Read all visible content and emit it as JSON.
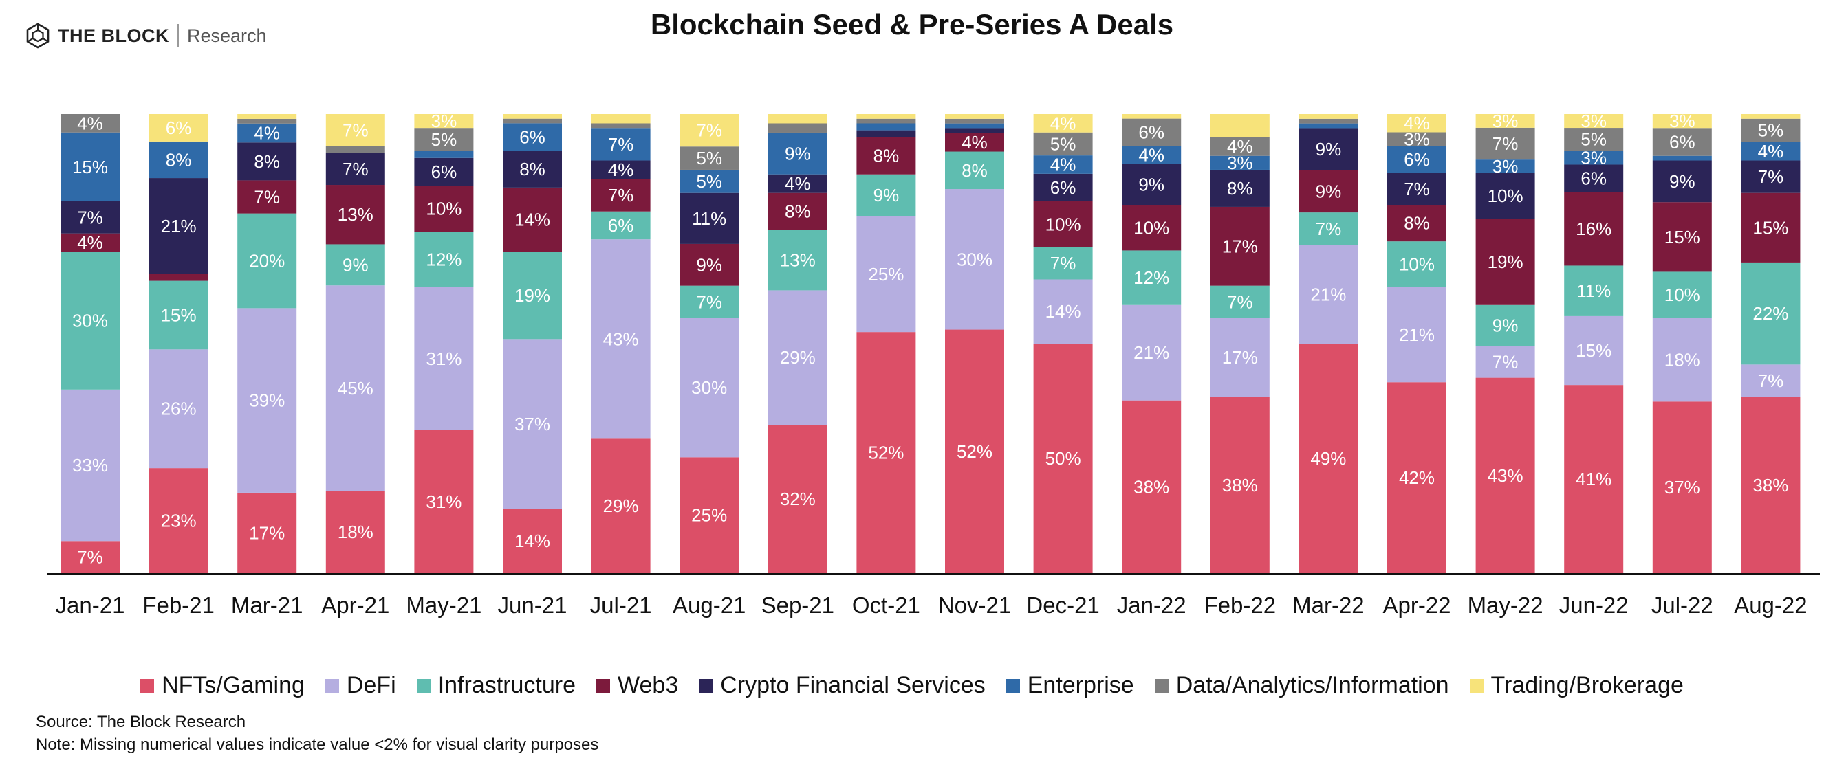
{
  "header": {
    "brand": "THE BLOCK",
    "brand_sub": "Research",
    "logo_icon": "cube-icon"
  },
  "chart_data": {
    "type": "bar",
    "stacked": true,
    "normalized": true,
    "title": "Blockchain Seed & Pre-Series A Deals",
    "xlabel": "",
    "ylabel": "",
    "ylim": [
      0,
      100
    ],
    "grid": false,
    "legend_position": "bottom",
    "categories": [
      "Jan-21",
      "Feb-21",
      "Mar-21",
      "Apr-21",
      "May-21",
      "Jun-21",
      "Jul-21",
      "Aug-21",
      "Sep-21",
      "Oct-21",
      "Nov-21",
      "Dec-21",
      "Jan-22",
      "Feb-22",
      "Mar-22",
      "Apr-22",
      "May-22",
      "Jun-22",
      "Jul-22",
      "Aug-22"
    ],
    "series": [
      {
        "name": "NFTs/Gaming",
        "color": "#dc4f67",
        "values": [
          7,
          23,
          17,
          18,
          31,
          14,
          29,
          25,
          32,
          52,
          52,
          50,
          38,
          38,
          49,
          42,
          43,
          41,
          37,
          38
        ],
        "labels": [
          "7%",
          "23%",
          "17%",
          "18%",
          "31%",
          "14%",
          "29%",
          "25%",
          "32%",
          "52%",
          "52%",
          "50%",
          "38%",
          "38%",
          "49%",
          "42%",
          "43%",
          "41%",
          "37%",
          "38%"
        ]
      },
      {
        "name": "DeFi",
        "color": "#b5aee0",
        "values": [
          33,
          26,
          39,
          45,
          31,
          37,
          43,
          30,
          29,
          25,
          30,
          14,
          21,
          17,
          21,
          21,
          7,
          15,
          18,
          7
        ],
        "labels": [
          "33%",
          "26%",
          "39%",
          "45%",
          "31%",
          "37%",
          "43%",
          "30%",
          "29%",
          "25%",
          "30%",
          "14%",
          "21%",
          "17%",
          "21%",
          "21%",
          "7%",
          "15%",
          "18%",
          "7%"
        ]
      },
      {
        "name": "Infrastructure",
        "color": "#5fbdb0",
        "values": [
          30,
          15,
          20,
          9,
          12,
          19,
          6,
          7,
          13,
          9,
          8,
          7,
          12,
          7,
          7,
          10,
          9,
          11,
          10,
          22
        ],
        "labels": [
          "30%",
          "15%",
          "20%",
          "9%",
          "12%",
          "19%",
          "6%",
          "7%",
          "13%",
          "9%",
          "8%",
          "7%",
          "12%",
          "7%",
          "7%",
          "10%",
          "9%",
          "11%",
          "10%",
          "22%"
        ]
      },
      {
        "name": "Web3",
        "color": "#7c1a3c",
        "values": [
          4,
          1.5,
          7,
          13,
          10,
          14,
          7,
          9,
          8,
          8,
          4,
          10,
          10,
          17,
          9,
          8,
          19,
          16,
          15,
          15
        ],
        "labels": [
          "4%",
          "",
          "7%",
          "13%",
          "10%",
          "14%",
          "7%",
          "9%",
          "8%",
          "8%",
          "4%",
          "10%",
          "10%",
          "17%",
          "9%",
          "8%",
          "19%",
          "16%",
          "15%",
          "15%"
        ]
      },
      {
        "name": "Crypto Financial Services",
        "color": "#2b2457",
        "values": [
          7,
          21,
          8,
          7,
          6,
          8,
          4,
          11,
          4,
          1.5,
          1,
          6,
          9,
          8,
          9,
          7,
          10,
          6,
          9,
          7
        ],
        "labels": [
          "7%",
          "21%",
          "8%",
          "7%",
          "6%",
          "8%",
          "4%",
          "11%",
          "4%",
          "",
          "",
          "6%",
          "9%",
          "8%",
          "9%",
          "7%",
          "10%",
          "6%",
          "9%",
          "7%"
        ]
      },
      {
        "name": "Enterprise",
        "color": "#2f6aa8",
        "values": [
          15,
          8,
          4,
          0,
          1.5,
          6,
          7,
          5,
          9,
          1.5,
          1,
          4,
          4,
          3,
          1,
          6,
          3,
          3,
          1,
          4
        ],
        "labels": [
          "15%",
          "8%",
          "4%",
          "",
          "",
          "6%",
          "7%",
          "5%",
          "9%",
          "",
          "",
          "4%",
          "4%",
          "3%",
          "",
          "6%",
          "3%",
          "3%",
          "",
          "4%"
        ]
      },
      {
        "name": "Data/Analytics/Information",
        "color": "#7e7e7e",
        "values": [
          4,
          0,
          1,
          1.5,
          5,
          1,
          1,
          5,
          2,
          1,
          1,
          5,
          6,
          4,
          1,
          3,
          7,
          5,
          6,
          5
        ],
        "labels": [
          "4%",
          "",
          "",
          "",
          "5%",
          "",
          "",
          "5%",
          "",
          "",
          "",
          "5%",
          "6%",
          "4%",
          "",
          "3%",
          "7%",
          "5%",
          "6%",
          "5%"
        ]
      },
      {
        "name": "Trading/Brokerage",
        "color": "#f7e37a",
        "values": [
          0,
          6,
          1,
          7,
          3,
          1,
          2,
          7,
          2,
          1,
          1,
          4,
          1,
          5,
          1,
          4,
          3,
          3,
          3,
          1
        ],
        "labels": [
          "",
          "6%",
          "",
          "7%",
          "3%",
          "",
          "",
          "7%",
          "",
          "",
          "",
          "4%",
          "",
          "",
          "",
          "4%",
          "3%",
          "3%",
          "3%",
          ""
        ]
      }
    ]
  },
  "footer": {
    "source": "Source: The Block Research",
    "note": "Note: Missing numerical values indicate value <2% for visual clarity purposes"
  }
}
